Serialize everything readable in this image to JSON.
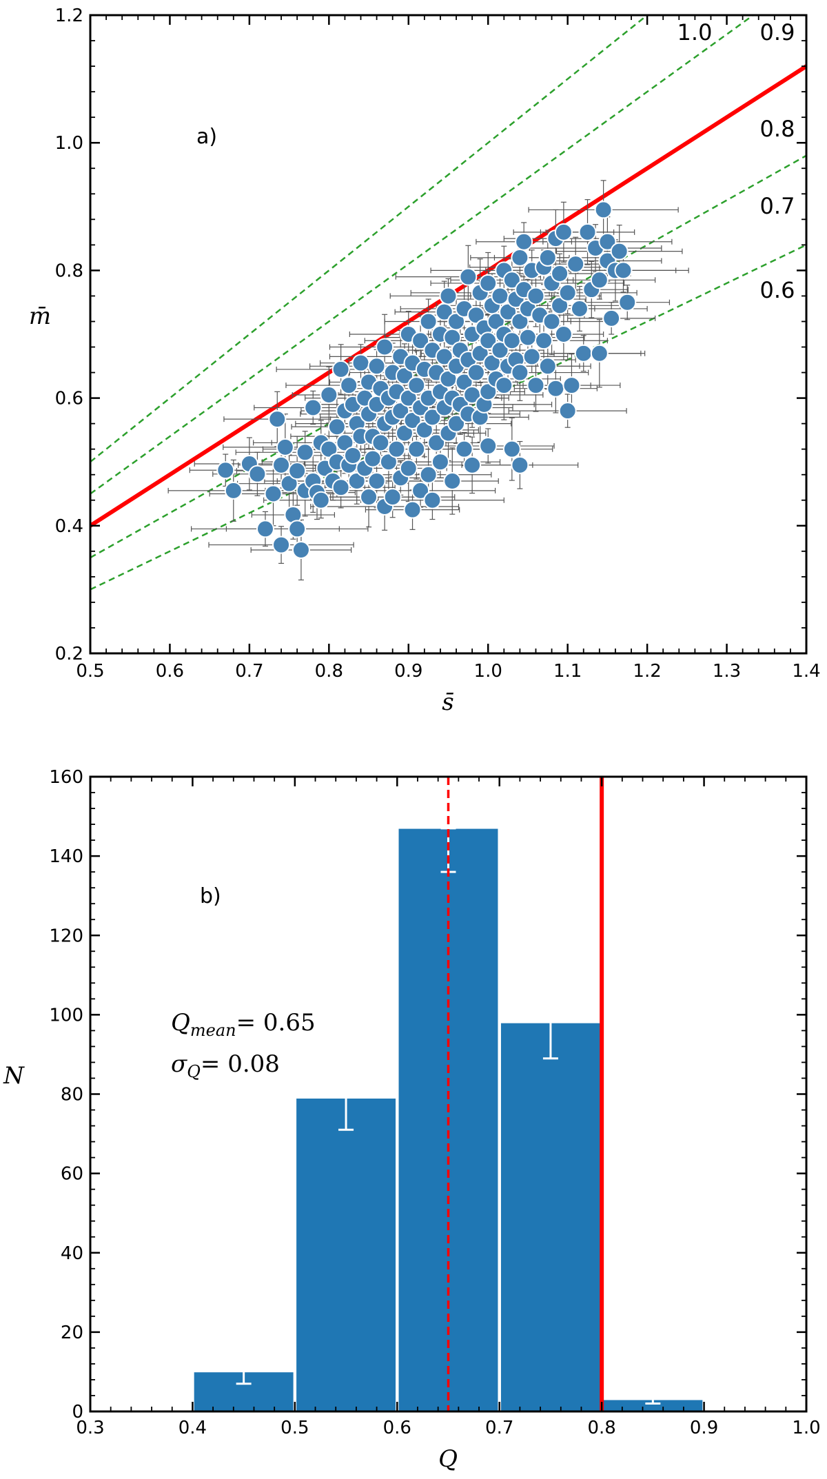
{
  "chart_data": [
    {
      "type": "scatter",
      "panel_label": "a)",
      "xlabel": "s̄",
      "ylabel": "m̄",
      "xlim": [
        0.5,
        1.4
      ],
      "ylim": [
        0.2,
        1.2
      ],
      "xticks": [
        "0.5",
        "0.6",
        "0.7",
        "0.8",
        "0.9",
        "1.0",
        "1.1",
        "1.2",
        "1.3",
        "1.4"
      ],
      "yticks": [
        "0.2",
        "0.4",
        "0.6",
        "0.8",
        "1.0",
        "1.2"
      ],
      "grid": false,
      "reference_lines": [
        {
          "slope": 1.0,
          "label": "1.0",
          "style": "dashed",
          "color": "#2ca02c"
        },
        {
          "slope": 0.9,
          "label": "0.9",
          "style": "dashed",
          "color": "#2ca02c"
        },
        {
          "slope": 0.8,
          "label": "0.8",
          "style": "solid",
          "color": "#ff0000"
        },
        {
          "slope": 0.7,
          "label": "0.7",
          "style": "dashed",
          "color": "#2ca02c"
        },
        {
          "slope": 0.6,
          "label": "0.6",
          "style": "dashed",
          "color": "#2ca02c"
        }
      ],
      "marker_color": "#4682b4",
      "errorbar_color": "#555555",
      "points": [
        [
          0.67,
          0.487
        ],
        [
          0.68,
          0.455
        ],
        [
          0.7,
          0.497
        ],
        [
          0.71,
          0.481
        ],
        [
          0.72,
          0.395
        ],
        [
          0.73,
          0.45
        ],
        [
          0.735,
          0.567
        ],
        [
          0.74,
          0.495
        ],
        [
          0.74,
          0.37
        ],
        [
          0.745,
          0.523
        ],
        [
          0.75,
          0.466
        ],
        [
          0.755,
          0.417
        ],
        [
          0.76,
          0.395
        ],
        [
          0.76,
          0.486
        ],
        [
          0.765,
          0.362
        ],
        [
          0.77,
          0.455
        ],
        [
          0.77,
          0.515
        ],
        [
          0.78,
          0.585
        ],
        [
          0.78,
          0.47
        ],
        [
          0.785,
          0.452
        ],
        [
          0.79,
          0.53
        ],
        [
          0.79,
          0.44
        ],
        [
          0.795,
          0.49
        ],
        [
          0.8,
          0.605
        ],
        [
          0.8,
          0.52
        ],
        [
          0.805,
          0.47
        ],
        [
          0.81,
          0.555
        ],
        [
          0.81,
          0.5
        ],
        [
          0.815,
          0.645
        ],
        [
          0.815,
          0.46
        ],
        [
          0.82,
          0.58
        ],
        [
          0.82,
          0.53
        ],
        [
          0.825,
          0.62
        ],
        [
          0.825,
          0.495
        ],
        [
          0.83,
          0.59
        ],
        [
          0.83,
          0.51
        ],
        [
          0.835,
          0.56
        ],
        [
          0.835,
          0.47
        ],
        [
          0.84,
          0.655
        ],
        [
          0.84,
          0.54
        ],
        [
          0.845,
          0.6
        ],
        [
          0.845,
          0.49
        ],
        [
          0.85,
          0.625
        ],
        [
          0.85,
          0.575
        ],
        [
          0.85,
          0.445
        ],
        [
          0.855,
          0.54
        ],
        [
          0.855,
          0.505
        ],
        [
          0.86,
          0.65
        ],
        [
          0.86,
          0.59
        ],
        [
          0.86,
          0.47
        ],
        [
          0.865,
          0.615
        ],
        [
          0.865,
          0.53
        ],
        [
          0.87,
          0.68
        ],
        [
          0.87,
          0.56
        ],
        [
          0.87,
          0.43
        ],
        [
          0.875,
          0.6
        ],
        [
          0.875,
          0.5
        ],
        [
          0.88,
          0.64
        ],
        [
          0.88,
          0.57
        ],
        [
          0.88,
          0.445
        ],
        [
          0.885,
          0.61
        ],
        [
          0.885,
          0.52
        ],
        [
          0.89,
          0.665
        ],
        [
          0.89,
          0.58
        ],
        [
          0.89,
          0.475
        ],
        [
          0.895,
          0.635
        ],
        [
          0.895,
          0.545
        ],
        [
          0.9,
          0.7
        ],
        [
          0.9,
          0.6
        ],
        [
          0.9,
          0.49
        ],
        [
          0.905,
          0.655
        ],
        [
          0.905,
          0.565
        ],
        [
          0.905,
          0.425
        ],
        [
          0.91,
          0.62
        ],
        [
          0.91,
          0.52
        ],
        [
          0.915,
          0.69
        ],
        [
          0.915,
          0.585
        ],
        [
          0.915,
          0.455
        ],
        [
          0.92,
          0.645
        ],
        [
          0.92,
          0.55
        ],
        [
          0.925,
          0.72
        ],
        [
          0.925,
          0.6
        ],
        [
          0.925,
          0.48
        ],
        [
          0.93,
          0.675
        ],
        [
          0.93,
          0.57
        ],
        [
          0.93,
          0.44
        ],
        [
          0.935,
          0.64
        ],
        [
          0.935,
          0.53
        ],
        [
          0.94,
          0.7
        ],
        [
          0.94,
          0.61
        ],
        [
          0.94,
          0.5
        ],
        [
          0.945,
          0.735
        ],
        [
          0.945,
          0.665
        ],
        [
          0.945,
          0.585
        ],
        [
          0.95,
          0.76
        ],
        [
          0.95,
          0.63
        ],
        [
          0.95,
          0.545
        ],
        [
          0.955,
          0.695
        ],
        [
          0.955,
          0.6
        ],
        [
          0.955,
          0.47
        ],
        [
          0.96,
          0.72
        ],
        [
          0.96,
          0.65
        ],
        [
          0.96,
          0.56
        ],
        [
          0.965,
          0.675
        ],
        [
          0.965,
          0.59
        ],
        [
          0.97,
          0.74
        ],
        [
          0.97,
          0.625
        ],
        [
          0.97,
          0.52
        ],
        [
          0.975,
          0.79
        ],
        [
          0.975,
          0.66
        ],
        [
          0.975,
          0.575
        ],
        [
          0.98,
          0.7
        ],
        [
          0.98,
          0.605
        ],
        [
          0.98,
          0.495
        ],
        [
          0.985,
          0.73
        ],
        [
          0.985,
          0.64
        ],
        [
          0.99,
          0.765
        ],
        [
          0.99,
          0.67
        ],
        [
          0.99,
          0.57
        ],
        [
          0.995,
          0.71
        ],
        [
          0.995,
          0.59
        ],
        [
          1.0,
          0.78
        ],
        [
          1.0,
          0.69
        ],
        [
          1.0,
          0.61
        ],
        [
          1.0,
          0.525
        ],
        [
          1.005,
          0.745
        ],
        [
          1.005,
          0.655
        ],
        [
          1.01,
          0.72
        ],
        [
          1.01,
          0.63
        ],
        [
          1.015,
          0.76
        ],
        [
          1.015,
          0.675
        ],
        [
          1.02,
          0.8
        ],
        [
          1.02,
          0.7
        ],
        [
          1.02,
          0.62
        ],
        [
          1.025,
          0.735
        ],
        [
          1.025,
          0.65
        ],
        [
          1.03,
          0.785
        ],
        [
          1.03,
          0.69
        ],
        [
          1.03,
          0.52
        ],
        [
          1.035,
          0.755
        ],
        [
          1.035,
          0.66
        ],
        [
          1.04,
          0.82
        ],
        [
          1.04,
          0.72
        ],
        [
          1.04,
          0.64
        ],
        [
          1.04,
          0.495
        ],
        [
          1.045,
          0.845
        ],
        [
          1.045,
          0.77
        ],
        [
          1.05,
          0.74
        ],
        [
          1.05,
          0.695
        ],
        [
          1.055,
          0.8
        ],
        [
          1.055,
          0.665
        ],
        [
          1.06,
          0.76
        ],
        [
          1.06,
          0.62
        ],
        [
          1.065,
          0.73
        ],
        [
          1.07,
          0.805
        ],
        [
          1.07,
          0.69
        ],
        [
          1.075,
          0.82
        ],
        [
          1.075,
          0.65
        ],
        [
          1.08,
          0.78
        ],
        [
          1.08,
          0.72
        ],
        [
          1.085,
          0.85
        ],
        [
          1.085,
          0.615
        ],
        [
          1.09,
          0.795
        ],
        [
          1.09,
          0.745
        ],
        [
          1.095,
          0.86
        ],
        [
          1.095,
          0.7
        ],
        [
          1.1,
          0.765
        ],
        [
          1.1,
          0.58
        ],
        [
          1.105,
          0.62
        ],
        [
          1.11,
          0.81
        ],
        [
          1.115,
          0.74
        ],
        [
          1.12,
          0.67
        ],
        [
          1.125,
          0.86
        ],
        [
          1.13,
          0.77
        ],
        [
          1.135,
          0.835
        ],
        [
          1.14,
          0.785
        ],
        [
          1.14,
          0.67
        ],
        [
          1.145,
          0.895
        ],
        [
          1.15,
          0.845
        ],
        [
          1.15,
          0.815
        ],
        [
          1.155,
          0.725
        ],
        [
          1.16,
          0.8
        ],
        [
          1.165,
          0.83
        ],
        [
          1.17,
          0.8
        ],
        [
          1.175,
          0.75
        ]
      ]
    },
    {
      "type": "bar",
      "panel_label": "b)",
      "xlabel": "Q",
      "ylabel": "N",
      "xlim": [
        0.3,
        1.0
      ],
      "ylim": [
        0,
        160
      ],
      "xticks": [
        "0.3",
        "0.4",
        "0.5",
        "0.6",
        "0.7",
        "0.8",
        "0.9",
        "1.0"
      ],
      "yticks": [
        "0",
        "20",
        "40",
        "60",
        "80",
        "100",
        "120",
        "140",
        "160"
      ],
      "grid": false,
      "bin_edges": [
        0.4,
        0.5,
        0.6,
        0.7,
        0.8,
        0.9
      ],
      "values": [
        10,
        79,
        147,
        98,
        3
      ],
      "error_low": [
        7,
        71,
        136,
        89,
        2
      ],
      "error_high": [
        14,
        89,
        147,
        109,
        6
      ],
      "bar_color": "#1f77b4",
      "vlines": [
        {
          "x": 0.65,
          "style": "dashed",
          "color": "#ff0000"
        },
        {
          "x": 0.8,
          "style": "solid",
          "color": "#ff0000"
        }
      ],
      "annotation": {
        "q_sub": "mean",
        "q_value": "= 0.65",
        "sigma_sub": "Q",
        "sigma_value": "= 0.08"
      }
    }
  ]
}
